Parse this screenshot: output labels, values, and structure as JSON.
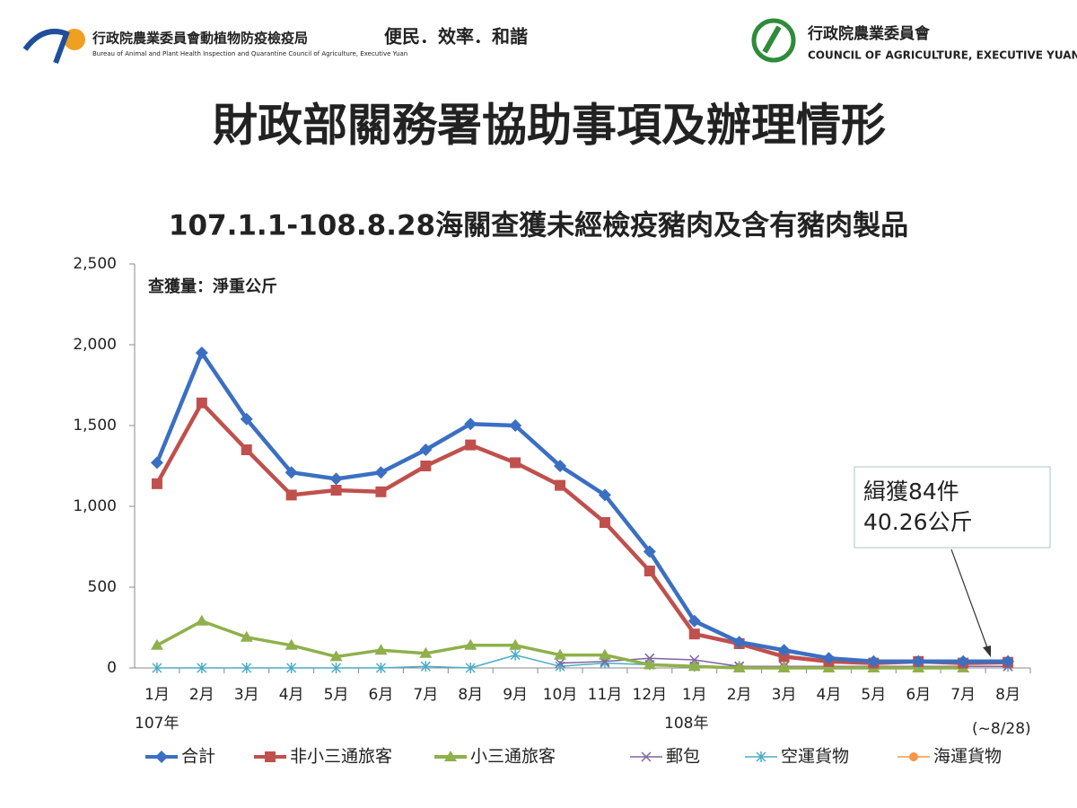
{
  "header": {
    "agency_zh": "行政院農業委員會動植物防疫檢疫局",
    "agency_en": "Bureau of Animal and Plant Health Inspection and Quarantine Council of Agriculture, Executive Yuan",
    "motto": "便民．效率．和諧",
    "council_zh": "行政院農業委員會",
    "council_en": "COUNCIL OF AGRICULTURE, EXECUTIVE YUAN",
    "title": "財政部關務署協助事項及辦理情形"
  },
  "chart_data": {
    "type": "line",
    "title": "107.1.1-108.8.28海關查獲未經檢疫豬肉及含有豬肉製品",
    "categories": [
      "1月",
      "2月",
      "3月",
      "4月",
      "5月",
      "6月",
      "7月",
      "8月",
      "9月",
      "10月",
      "11月",
      "12月",
      "1月",
      "2月",
      "3月",
      "4月",
      "5月",
      "6月",
      "7月",
      "8月"
    ],
    "annotations": [
      "查獲量：淨重公斤",
      "107年",
      "108年",
      "(~8/28)",
      "緝獲84件",
      "40.26公斤"
    ],
    "ylim": [
      0,
      2500
    ],
    "yticks": [
      0,
      500,
      {
        "value": 1000,
        "label": "1,000"
      },
      {
        "value": 1500,
        "label": "1,500"
      },
      {
        "value": 2000,
        "label": "2,000"
      },
      {
        "value": 2500,
        "label": "2,500"
      }
    ],
    "legend": "bottom",
    "series": [
      {
        "name": "合計",
        "color": "#3b6fc2",
        "marker": "diamond",
        "values": [
          1270,
          1950,
          1540,
          1210,
          1170,
          1210,
          1350,
          1510,
          1500,
          1250,
          1070,
          720,
          290,
          160,
          110,
          60,
          40,
          40,
          40,
          40
        ]
      },
      {
        "name": "非小三通旅客",
        "color": "#c0504d",
        "marker": "square",
        "values": [
          1140,
          1640,
          1350,
          1070,
          1100,
          1090,
          1250,
          1380,
          1270,
          1130,
          900,
          600,
          210,
          150,
          70,
          40,
          30,
          40,
          30,
          35
        ]
      },
      {
        "name": "小三通旅客",
        "color": "#8fb04b",
        "marker": "triangle",
        "values": [
          140,
          290,
          190,
          140,
          70,
          110,
          90,
          140,
          140,
          80,
          80,
          20,
          10,
          0,
          0,
          0,
          0,
          0,
          0,
          null
        ]
      },
      {
        "name": "郵包",
        "color": "#8064a2",
        "marker": "x",
        "values": [
          null,
          null,
          null,
          null,
          null,
          null,
          null,
          null,
          null,
          30,
          40,
          60,
          50,
          10,
          10,
          10,
          10,
          10,
          10,
          10
        ]
      },
      {
        "name": "空運貨物",
        "color": "#4bacc6",
        "marker": "star",
        "values": [
          0,
          0,
          0,
          0,
          0,
          0,
          10,
          0,
          80,
          10,
          30,
          20,
          10,
          10,
          10,
          10,
          10,
          10,
          10,
          10
        ]
      },
      {
        "name": "海運貨物",
        "color": "#f79646",
        "marker": "circle",
        "values": [
          null,
          null,
          null,
          null,
          null,
          null,
          null,
          null,
          null,
          null,
          null,
          null,
          10,
          5,
          5,
          5,
          5,
          5,
          5,
          null
        ]
      }
    ]
  }
}
